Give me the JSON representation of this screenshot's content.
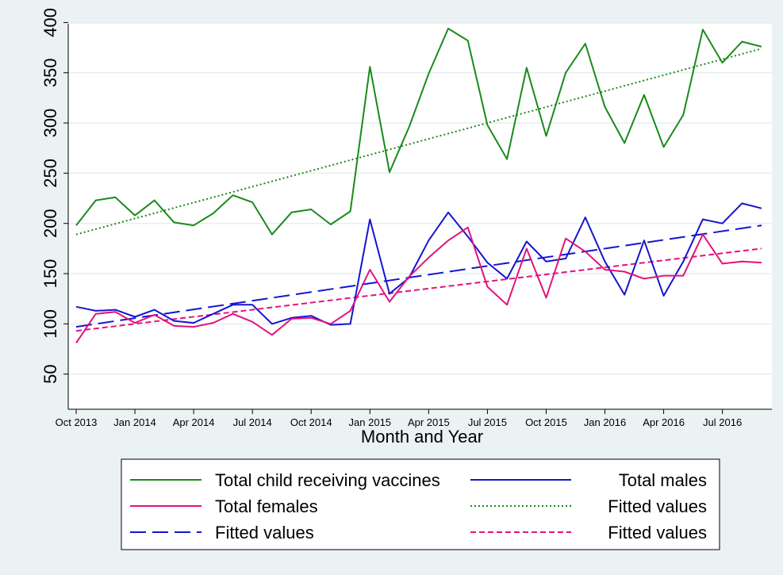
{
  "chart_data": {
    "type": "line",
    "title": "",
    "xlabel": "Month and Year",
    "ylabel": "",
    "ylim": [
      40,
      415
    ],
    "xlim": [
      "2013-10",
      "2016-09"
    ],
    "y_ticks": [
      50,
      100,
      150,
      200,
      250,
      300,
      350,
      400
    ],
    "x_tick_labels": [
      "Oct 2013",
      "Jan 2014",
      "Apr 2014",
      "Jul 2014",
      "Oct 2014",
      "Jan 2015",
      "Apr 2015",
      "Jul 2015",
      "Oct 2015",
      "Jan 2016",
      "Apr 2016",
      "Jul 2016"
    ],
    "months": [
      "2013-10",
      "2013-11",
      "2013-12",
      "2014-01",
      "2014-02",
      "2014-03",
      "2014-04",
      "2014-05",
      "2014-06",
      "2014-07",
      "2014-08",
      "2014-09",
      "2014-10",
      "2014-11",
      "2014-12",
      "2015-01",
      "2015-02",
      "2015-03",
      "2015-04",
      "2015-05",
      "2015-06",
      "2015-07",
      "2015-08",
      "2015-09",
      "2015-10",
      "2015-11",
      "2015-12",
      "2016-01",
      "2016-02",
      "2016-03",
      "2016-04",
      "2016-05",
      "2016-06",
      "2016-07",
      "2016-08",
      "2016-09"
    ],
    "grid": true,
    "legend_position": "bottom",
    "series": [
      {
        "name": "Total child receiving vaccines",
        "color": "#1a8a1a",
        "style": "solid",
        "values": [
          198,
          223,
          226,
          208,
          223,
          201,
          198,
          210,
          228,
          221,
          189,
          211,
          214,
          199,
          212,
          356,
          251,
          296,
          349,
          394,
          382,
          298,
          264,
          355,
          287,
          350,
          379,
          316,
          280,
          328,
          276,
          308,
          393,
          360,
          381,
          376
        ]
      },
      {
        "name": "Total males",
        "color": "#1515d0",
        "style": "solid",
        "values": [
          117,
          113,
          114,
          107,
          114,
          103,
          101,
          110,
          119,
          119,
          100,
          106,
          108,
          99,
          100,
          204,
          130,
          146,
          183,
          211,
          187,
          161,
          145,
          182,
          162,
          165,
          206,
          162,
          129,
          183,
          128,
          162,
          204,
          200,
          220,
          215
        ]
      },
      {
        "name": "Total females",
        "color": "#e3127c",
        "style": "solid",
        "values": [
          81,
          110,
          112,
          101,
          109,
          98,
          97,
          101,
          110,
          102,
          89,
          105,
          106,
          100,
          113,
          154,
          122,
          147,
          166,
          183,
          196,
          137,
          119,
          175,
          126,
          185,
          172,
          154,
          152,
          145,
          148,
          148,
          189,
          160,
          162,
          161
        ]
      },
      {
        "name": "Fitted values",
        "color": "#1a8a1a",
        "style": "dotted",
        "values": [
          189,
          374
        ]
      },
      {
        "name": "Fitted values",
        "color": "#1515d0",
        "style": "longdash",
        "values": [
          97,
          198
        ]
      },
      {
        "name": "Fitted values",
        "color": "#e3127c",
        "style": "shortdash",
        "values": [
          93,
          175
        ]
      }
    ]
  }
}
